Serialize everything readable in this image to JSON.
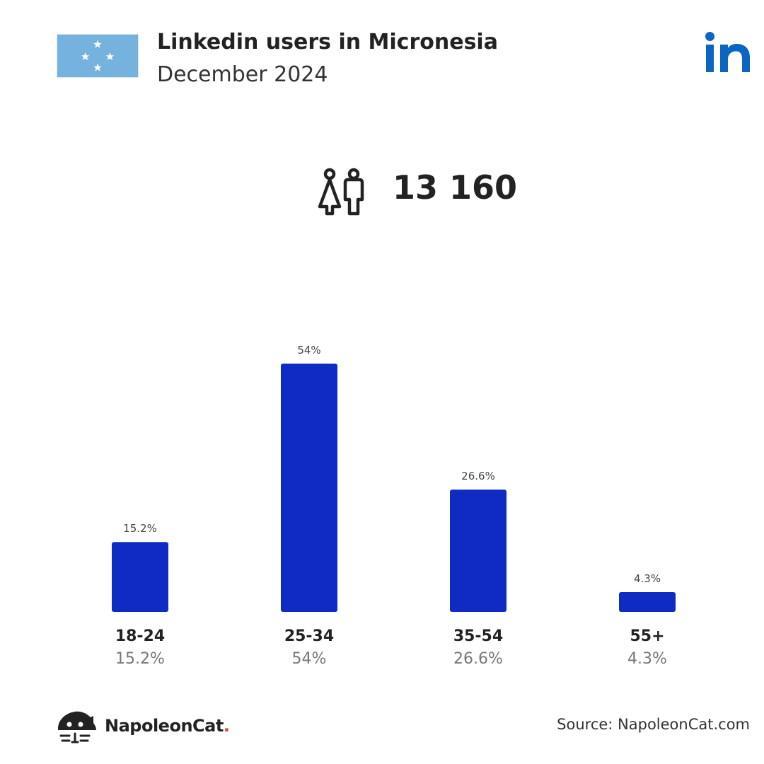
{
  "header": {
    "title": "Linkedin users in Micronesia",
    "subtitle": "December 2024",
    "flag_icon": "micronesia-flag-icon",
    "brand_icon": "linkedin-logo-icon"
  },
  "summary": {
    "users_icon": "people-icon",
    "total_users": "13 160"
  },
  "colors": {
    "bar": "#0f2bc4",
    "linkedin_blue": "#0a66c2",
    "flag_blue": "#75b2dd",
    "brand_dot": "#e53935"
  },
  "chart_data": {
    "type": "bar",
    "title": "Linkedin users in Micronesia",
    "subtitle": "December 2024",
    "categories": [
      "18-24",
      "25-34",
      "35-54",
      "55+"
    ],
    "values": [
      15.2,
      54,
      26.6,
      4.3
    ],
    "value_labels": [
      "15.2%",
      "54%",
      "26.6%",
      "4.3%"
    ],
    "unit": "%",
    "grid": false,
    "legend": "none"
  },
  "footer": {
    "brand_name": "NapoleonCat",
    "brand_dot": ".",
    "brand_icon": "napoleoncat-logo-icon",
    "source": "Source: NapoleonCat.com"
  }
}
